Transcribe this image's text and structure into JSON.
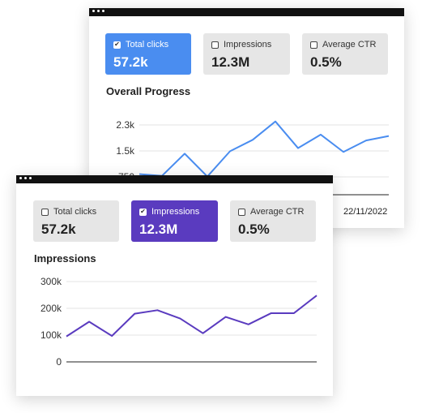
{
  "window_back": {
    "cards": [
      {
        "label": "Total clicks",
        "value": "57.2k",
        "checked": true
      },
      {
        "label": "Impressions",
        "value": "12.3M",
        "checked": false
      },
      {
        "label": "Average CTR",
        "value": "0.5%",
        "checked": false
      }
    ],
    "section_title": "Overall Progress",
    "date_label": "22/11/2022",
    "accent": "#4a8df0"
  },
  "window_front": {
    "cards": [
      {
        "label": "Total clicks",
        "value": "57.2k",
        "checked": false
      },
      {
        "label": "Impressions",
        "value": "12.3M",
        "checked": true
      },
      {
        "label": "Average CTR",
        "value": "0.5%",
        "checked": false
      }
    ],
    "section_title": "Impressions",
    "accent": "#5a3bbf"
  },
  "chart_data": [
    {
      "type": "line",
      "title": "Overall Progress",
      "y_tick_labels": [
        "2.3k",
        "1.5k",
        "750"
      ],
      "y_tick_values": [
        2250,
        1500,
        750
      ],
      "ylim": [
        0,
        2600
      ],
      "grid": true,
      "color": "#4a8df0",
      "values": [
        830,
        780,
        1420,
        760,
        1490,
        1820,
        2350,
        1580,
        1970,
        1470,
        1800,
        1930
      ]
    },
    {
      "type": "line",
      "title": "Impressions",
      "y_tick_labels": [
        "300k",
        "200k",
        "100k",
        "0"
      ],
      "y_tick_values": [
        300000,
        200000,
        100000,
        0
      ],
      "ylim": [
        0,
        300000
      ],
      "grid": true,
      "color": "#5a3bbf",
      "values": [
        95000,
        150000,
        97000,
        180000,
        193000,
        162000,
        107000,
        168000,
        140000,
        182000,
        182000,
        248000
      ]
    }
  ]
}
